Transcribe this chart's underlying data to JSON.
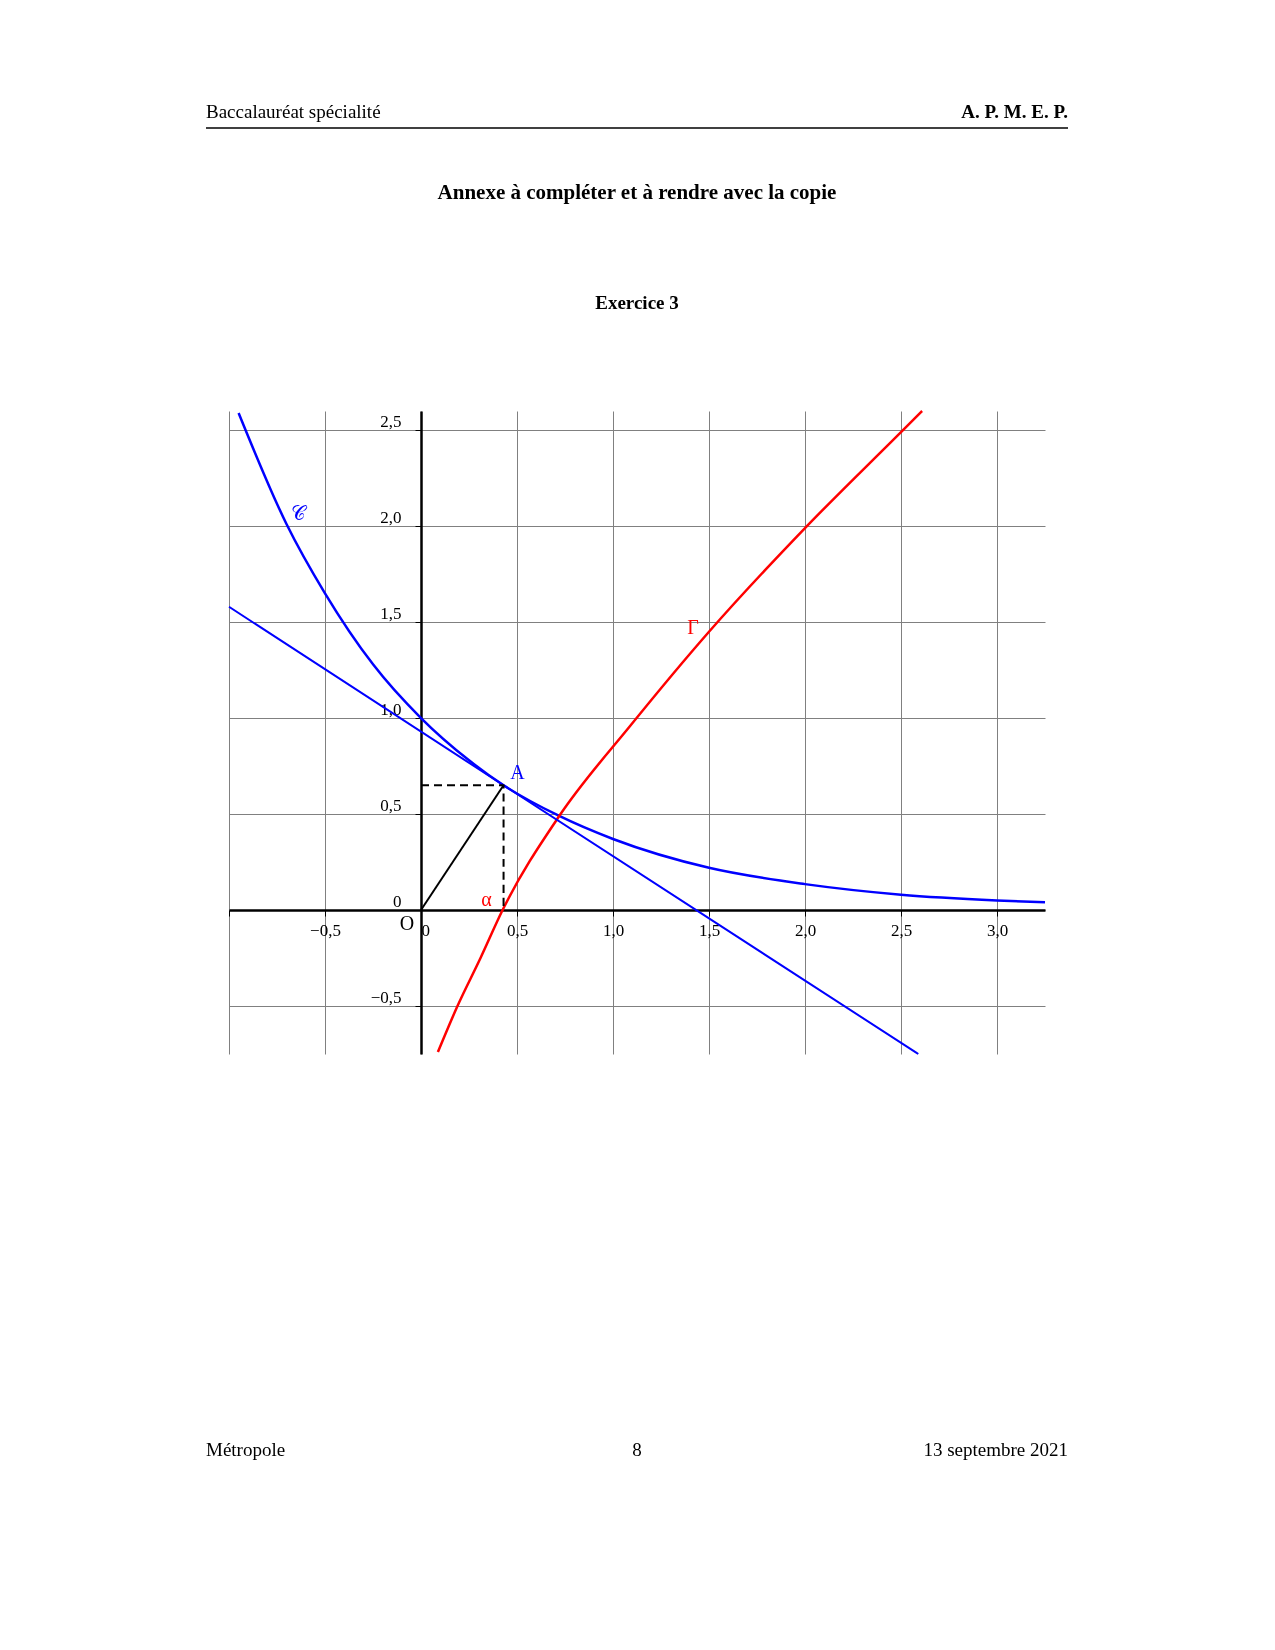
{
  "chart_data": {
    "type": "line",
    "title": "Annexe à compléter et à rendre avec la copie",
    "subtitle": "Exercice 3",
    "xlim": [
      -1,
      3.25
    ],
    "ylim": [
      -0.75,
      2.6
    ],
    "xticks": [
      {
        "value": -1,
        "label": null
      },
      {
        "value": -0.5,
        "label": "−0,5"
      },
      0,
      {
        "value": 0.5,
        "label": "0,5"
      },
      {
        "value": 1,
        "label": "1,0"
      },
      {
        "value": 1.5,
        "label": "1,5"
      },
      {
        "value": 2,
        "label": "2,0"
      },
      {
        "value": 2.5,
        "label": "2,5"
      },
      {
        "value": 3,
        "label": "3,0"
      }
    ],
    "yticks": [
      {
        "value": -0.5,
        "label": "−0,5"
      },
      0,
      {
        "value": 0.5,
        "label": "0,5"
      },
      {
        "value": 1,
        "label": "1,0"
      },
      {
        "value": 1.5,
        "label": "1,5"
      },
      {
        "value": 2,
        "label": "2,0"
      },
      {
        "value": 2.5,
        "label": "2,5"
      }
    ],
    "grid": true,
    "series": [
      {
        "color": "#0000ff",
        "line_style": "solid",
        "x": [
          -0.95,
          -0.7,
          -0.5,
          -0.25,
          0,
          0.25,
          0.43,
          0.72,
          1,
          1.5,
          2,
          2.5,
          3,
          3.25
        ],
        "values": [
          2.59,
          2.01,
          1.65,
          1.28,
          1,
          0.78,
          0.65,
          0.49,
          0.37,
          0.22,
          0.135,
          0.08,
          0.05,
          0.04
        ]
      },
      {
        "color": "#ff0000",
        "line_style": "solid",
        "x": [
          0.088,
          0.19,
          0.31,
          0.425,
          0.72,
          1.09,
          1.5,
          2,
          2.5,
          2.61
        ],
        "values": [
          -0.74,
          -0.5,
          -0.25,
          0,
          0.49,
          0.96,
          1.45,
          1.99,
          2.49,
          2.6
        ]
      },
      {
        "color": "#0000ff",
        "line_style": "solid",
        "x": [
          -1,
          0.43,
          2.59
        ],
        "values": [
          1.58,
          0.65,
          -0.75
        ]
      },
      {
        "color": "#000000",
        "line_style": "dashed",
        "x": [
          0,
          0.43,
          0.43
        ],
        "values": [
          0.65,
          0.65,
          0
        ]
      },
      {
        "color": "#000000",
        "line_style": "solid",
        "x": [
          0,
          0.43
        ],
        "values": [
          0,
          0.65
        ]
      }
    ],
    "annotations": [
      {
        "text": "𝒞",
        "x": -0.7,
        "y": 2.01
      },
      {
        "text": "Γ",
        "x": 1.5,
        "y": 1.45
      },
      {
        "text": "A",
        "x": 0.43,
        "y": 0.65
      },
      {
        "text": "α",
        "x": 0.425,
        "y": 0
      },
      {
        "text": "O",
        "x": 0,
        "y": 0
      },
      "Baccalauréat spécialité",
      "A. P. M. E. P.",
      "Métropole",
      "8",
      "13 septembre 2021"
    ]
  }
}
